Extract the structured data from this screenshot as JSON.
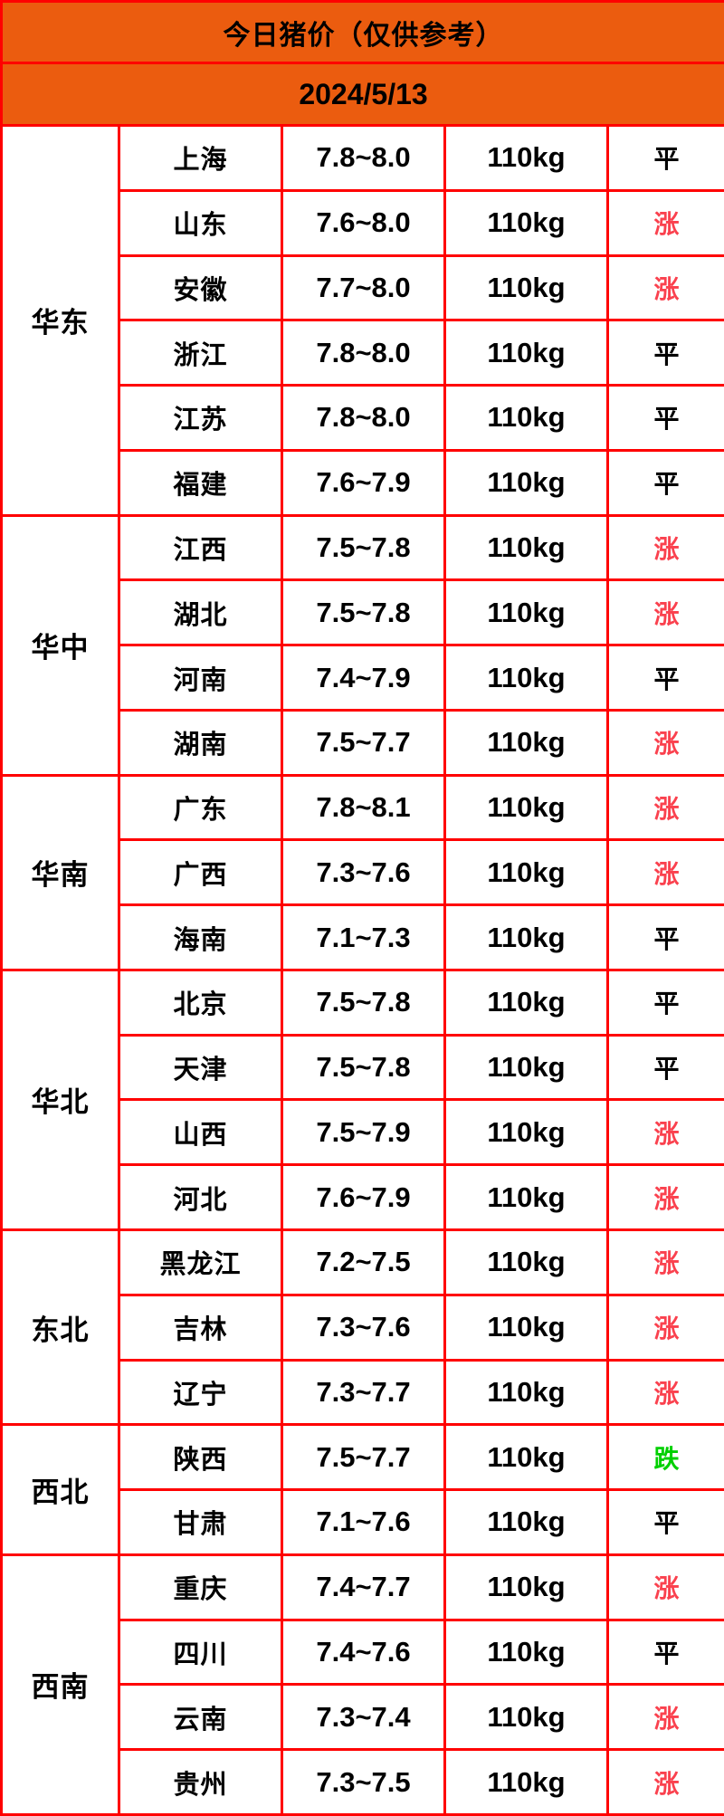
{
  "header": {
    "title": "今日猪价（仅供参考）",
    "date": "2024/5/13"
  },
  "colors": {
    "header_bg": "#eb5c0f",
    "grid": "#ff0000",
    "up": "#fa414e",
    "down": "#00d000",
    "flat": "#000000"
  },
  "table": {
    "regions": [
      {
        "name": "华东",
        "rows": [
          {
            "province": "上海",
            "price": "7.8~8.0",
            "weight": "110kg",
            "trend": "平",
            "trend_type": "flat"
          },
          {
            "province": "山东",
            "price": "7.6~8.0",
            "weight": "110kg",
            "trend": "涨",
            "trend_type": "up"
          },
          {
            "province": "安徽",
            "price": "7.7~8.0",
            "weight": "110kg",
            "trend": "涨",
            "trend_type": "up"
          },
          {
            "province": "浙江",
            "price": "7.8~8.0",
            "weight": "110kg",
            "trend": "平",
            "trend_type": "flat"
          },
          {
            "province": "江苏",
            "price": "7.8~8.0",
            "weight": "110kg",
            "trend": "平",
            "trend_type": "flat"
          },
          {
            "province": "福建",
            "price": "7.6~7.9",
            "weight": "110kg",
            "trend": "平",
            "trend_type": "flat"
          }
        ]
      },
      {
        "name": "华中",
        "rows": [
          {
            "province": "江西",
            "price": "7.5~7.8",
            "weight": "110kg",
            "trend": "涨",
            "trend_type": "up"
          },
          {
            "province": "湖北",
            "price": "7.5~7.8",
            "weight": "110kg",
            "trend": "涨",
            "trend_type": "up"
          },
          {
            "province": "河南",
            "price": "7.4~7.9",
            "weight": "110kg",
            "trend": "平",
            "trend_type": "flat"
          },
          {
            "province": "湖南",
            "price": "7.5~7.7",
            "weight": "110kg",
            "trend": "涨",
            "trend_type": "up"
          }
        ]
      },
      {
        "name": "华南",
        "rows": [
          {
            "province": "广东",
            "price": "7.8~8.1",
            "weight": "110kg",
            "trend": "涨",
            "trend_type": "up"
          },
          {
            "province": "广西",
            "price": "7.3~7.6",
            "weight": "110kg",
            "trend": "涨",
            "trend_type": "up"
          },
          {
            "province": "海南",
            "price": "7.1~7.3",
            "weight": "110kg",
            "trend": "平",
            "trend_type": "flat"
          }
        ]
      },
      {
        "name": "华北",
        "rows": [
          {
            "province": "北京",
            "price": "7.5~7.8",
            "weight": "110kg",
            "trend": "平",
            "trend_type": "flat"
          },
          {
            "province": "天津",
            "price": "7.5~7.8",
            "weight": "110kg",
            "trend": "平",
            "trend_type": "flat"
          },
          {
            "province": "山西",
            "price": "7.5~7.9",
            "weight": "110kg",
            "trend": "涨",
            "trend_type": "up"
          },
          {
            "province": "河北",
            "price": "7.6~7.9",
            "weight": "110kg",
            "trend": "涨",
            "trend_type": "up"
          }
        ]
      },
      {
        "name": "东北",
        "rows": [
          {
            "province": "黑龙江",
            "price": "7.2~7.5",
            "weight": "110kg",
            "trend": "涨",
            "trend_type": "up"
          },
          {
            "province": "吉林",
            "price": "7.3~7.6",
            "weight": "110kg",
            "trend": "涨",
            "trend_type": "up"
          },
          {
            "province": "辽宁",
            "price": "7.3~7.7",
            "weight": "110kg",
            "trend": "涨",
            "trend_type": "up"
          }
        ]
      },
      {
        "name": "西北",
        "rows": [
          {
            "province": "陕西",
            "price": "7.5~7.7",
            "weight": "110kg",
            "trend": "跌",
            "trend_type": "down"
          },
          {
            "province": "甘肃",
            "price": "7.1~7.6",
            "weight": "110kg",
            "trend": "平",
            "trend_type": "flat"
          }
        ]
      },
      {
        "name": "西南",
        "rows": [
          {
            "province": "重庆",
            "price": "7.4~7.7",
            "weight": "110kg",
            "trend": "涨",
            "trend_type": "up"
          },
          {
            "province": "四川",
            "price": "7.4~7.6",
            "weight": "110kg",
            "trend": "平",
            "trend_type": "flat"
          },
          {
            "province": "云南",
            "price": "7.3~7.4",
            "weight": "110kg",
            "trend": "涨",
            "trend_type": "up"
          },
          {
            "province": "贵州",
            "price": "7.3~7.5",
            "weight": "110kg",
            "trend": "涨",
            "trend_type": "up"
          }
        ]
      }
    ]
  },
  "chart_data": {
    "type": "table",
    "title": "今日猪价（仅供参考）",
    "subtitle": "2024/5/13",
    "merged_region_column": true,
    "rows": [
      [
        "华东",
        "上海",
        "7.8~8.0",
        "110kg",
        "平"
      ],
      [
        "华东",
        "山东",
        "7.6~8.0",
        "110kg",
        "涨"
      ],
      [
        "华东",
        "安徽",
        "7.7~8.0",
        "110kg",
        "涨"
      ],
      [
        "华东",
        "浙江",
        "7.8~8.0",
        "110kg",
        "平"
      ],
      [
        "华东",
        "江苏",
        "7.8~8.0",
        "110kg",
        "平"
      ],
      [
        "华东",
        "福建",
        "7.6~7.9",
        "110kg",
        "平"
      ],
      [
        "华中",
        "江西",
        "7.5~7.8",
        "110kg",
        "涨"
      ],
      [
        "华中",
        "湖北",
        "7.5~7.8",
        "110kg",
        "涨"
      ],
      [
        "华中",
        "河南",
        "7.4~7.9",
        "110kg",
        "平"
      ],
      [
        "华中",
        "湖南",
        "7.5~7.7",
        "110kg",
        "涨"
      ],
      [
        "华南",
        "广东",
        "7.8~8.1",
        "110kg",
        "涨"
      ],
      [
        "华南",
        "广西",
        "7.3~7.6",
        "110kg",
        "涨"
      ],
      [
        "华南",
        "海南",
        "7.1~7.3",
        "110kg",
        "平"
      ],
      [
        "华北",
        "北京",
        "7.5~7.8",
        "110kg",
        "平"
      ],
      [
        "华北",
        "天津",
        "7.5~7.8",
        "110kg",
        "平"
      ],
      [
        "华北",
        "山西",
        "7.5~7.9",
        "110kg",
        "涨"
      ],
      [
        "华北",
        "河北",
        "7.6~7.9",
        "110kg",
        "涨"
      ],
      [
        "东北",
        "黑龙江",
        "7.2~7.5",
        "110kg",
        "涨"
      ],
      [
        "东北",
        "吉林",
        "7.3~7.6",
        "110kg",
        "涨"
      ],
      [
        "东北",
        "辽宁",
        "7.3~7.7",
        "110kg",
        "涨"
      ],
      [
        "西北",
        "陕西",
        "7.5~7.7",
        "110kg",
        "跌"
      ],
      [
        "西北",
        "甘肃",
        "7.1~7.6",
        "110kg",
        "平"
      ],
      [
        "西南",
        "重庆",
        "7.4~7.7",
        "110kg",
        "涨"
      ],
      [
        "西南",
        "四川",
        "7.4~7.6",
        "110kg",
        "平"
      ],
      [
        "西南",
        "云南",
        "7.3~7.4",
        "110kg",
        "涨"
      ],
      [
        "西南",
        "贵州",
        "7.3~7.5",
        "110kg",
        "涨"
      ]
    ]
  }
}
